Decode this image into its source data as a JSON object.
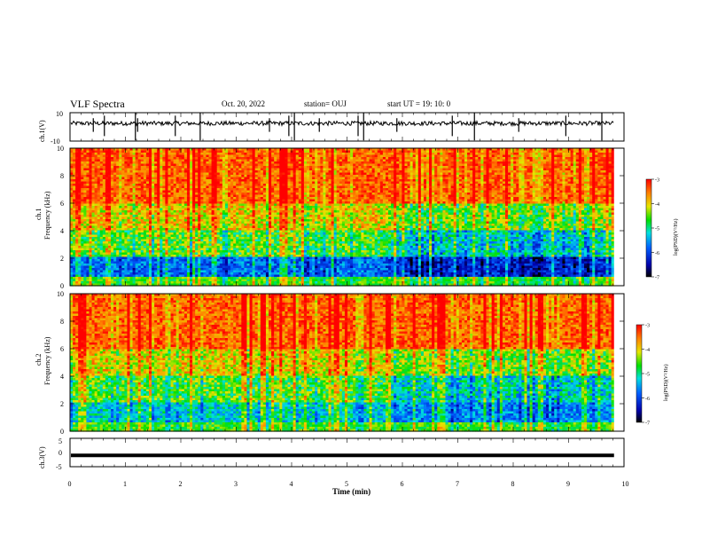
{
  "header": {
    "title": "VLF Spectra",
    "date": "Oct. 20, 2022",
    "station": "station= OUJ",
    "start": "start  UT =   19: 10: 0"
  },
  "chart_data": [
    {
      "type": "line",
      "panel": "ch1-waveform",
      "ylabel": "ch.1(V)",
      "ylim": [
        -10,
        10
      ],
      "yticks": [
        "10",
        "-10"
      ],
      "xlim": [
        0,
        10
      ],
      "description_level": 2.5,
      "spike_times": [
        0.42,
        0.62,
        1.18,
        1.22,
        1.9,
        2.35,
        3.6,
        3.95,
        4.05,
        4.5,
        5.2,
        5.3,
        5.9,
        6.9,
        7.3,
        8.1,
        8.95,
        9.6
      ]
    },
    {
      "type": "heatmap",
      "panel": "ch1-spectrogram",
      "ylabel": "ch.1\nFrequency (kHz)",
      "ylabel_lines": [
        "ch.1",
        "Frequency (kHz)"
      ],
      "ylim": [
        0,
        10
      ],
      "yticks": [
        "0",
        "2",
        "4",
        "6",
        "8",
        "10"
      ],
      "xlim": [
        0,
        10
      ],
      "colorbar": {
        "label": "log(PSD)(V²/Hz)",
        "range": [
          -7,
          -3
        ],
        "ticks": [
          "-3",
          "-4",
          "-5",
          "-6",
          "-7"
        ]
      }
    },
    {
      "type": "heatmap",
      "panel": "ch2-spectrogram",
      "ylabel": "ch.2\nFrequency (kHz)",
      "ylabel_lines": [
        "ch.2",
        "Frequency (kHz)"
      ],
      "ylim": [
        0,
        10
      ],
      "yticks": [
        "0",
        "2",
        "4",
        "6",
        "8",
        "10"
      ],
      "xlim": [
        0,
        10
      ],
      "colorbar": {
        "label": "log(PSD)(V²/Hz)",
        "range": [
          -7,
          -3
        ],
        "ticks": [
          "-3",
          "-4",
          "-5",
          "-6",
          "-7"
        ]
      }
    },
    {
      "type": "line",
      "panel": "ch3-waveform",
      "ylabel": "ch.3(V)",
      "ylim": [
        -5,
        5
      ],
      "yticks": [
        "5",
        "0",
        "-5"
      ],
      "xlim": [
        0,
        10
      ],
      "constant_value": -1
    }
  ],
  "xaxis": {
    "label": "Time (min)",
    "ticks": [
      "0",
      "1",
      "2",
      "3",
      "4",
      "5",
      "6",
      "7",
      "8",
      "9",
      "10"
    ]
  },
  "colors": {
    "max": "#ff0000",
    "min": "#000000"
  }
}
